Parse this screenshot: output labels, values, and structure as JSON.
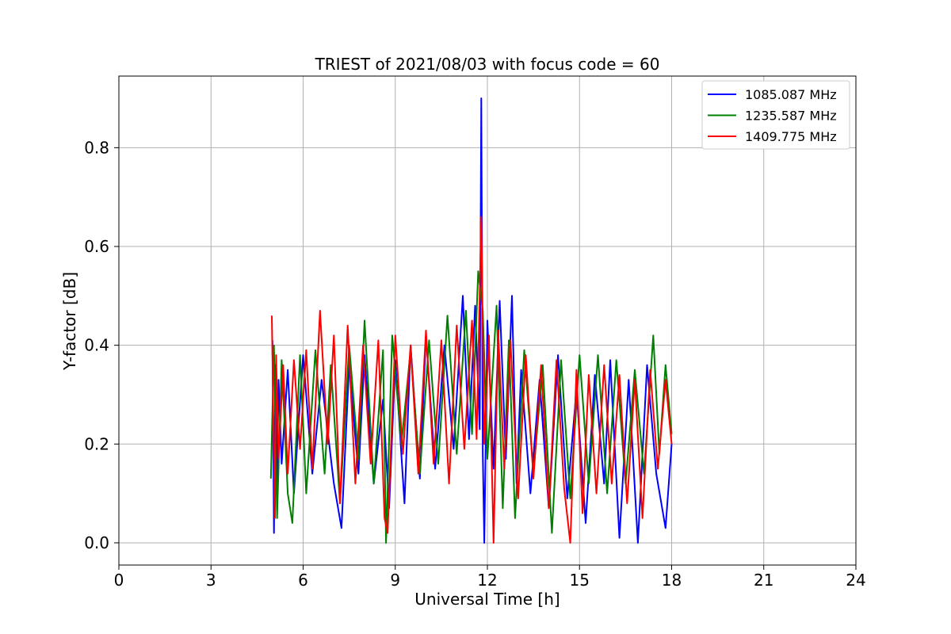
{
  "chart_data": {
    "type": "line",
    "title": "TRIEST of 2021/08/03 with focus code = 60",
    "xlabel": "Universal Time [h]",
    "ylabel": "Y-factor [dB]",
    "xlim": [
      0,
      24
    ],
    "ylim": [
      -0.045,
      0.945
    ],
    "xticks": [
      0,
      3,
      6,
      9,
      12,
      15,
      18,
      21,
      24
    ],
    "xtick_labels": [
      "0",
      "3",
      "6",
      "9",
      "12",
      "15",
      "18",
      "21",
      "24"
    ],
    "yticks": [
      0.0,
      0.2,
      0.4,
      0.6,
      0.8
    ],
    "ytick_labels": [
      "0.0",
      "0.2",
      "0.4",
      "0.6",
      "0.8"
    ],
    "grid": true,
    "legend_position": "top-right",
    "series": [
      {
        "name": "1085.087 MHz",
        "color": "#0000ff",
        "x": [
          5.0,
          5.05,
          5.1,
          5.15,
          5.2,
          5.3,
          5.5,
          5.7,
          6.0,
          6.3,
          6.6,
          7.0,
          7.25,
          7.5,
          7.8,
          8.0,
          8.3,
          8.6,
          8.8,
          9.0,
          9.3,
          9.5,
          9.8,
          10.0,
          10.3,
          10.6,
          10.9,
          11.2,
          11.4,
          11.6,
          11.75,
          11.8,
          11.85,
          11.9,
          12.0,
          12.2,
          12.4,
          12.6,
          12.8,
          12.95,
          13.1,
          13.4,
          13.7,
          14.0,
          14.3,
          14.6,
          14.9,
          15.2,
          15.5,
          15.8,
          16.0,
          16.3,
          16.6,
          16.9,
          17.2,
          17.5,
          17.8,
          18.0
        ],
        "y": [
          0.41,
          0.02,
          0.36,
          0.12,
          0.33,
          0.16,
          0.35,
          0.1,
          0.38,
          0.14,
          0.33,
          0.12,
          0.03,
          0.36,
          0.14,
          0.38,
          0.12,
          0.29,
          0.07,
          0.37,
          0.08,
          0.4,
          0.13,
          0.42,
          0.15,
          0.4,
          0.19,
          0.5,
          0.21,
          0.48,
          0.23,
          0.9,
          0.18,
          0.0,
          0.45,
          0.15,
          0.49,
          0.17,
          0.5,
          0.12,
          0.35,
          0.1,
          0.33,
          0.07,
          0.38,
          0.09,
          0.31,
          0.04,
          0.34,
          0.12,
          0.37,
          0.01,
          0.33,
          0.0,
          0.36,
          0.14,
          0.03,
          0.2
        ]
      },
      {
        "name": "1235.587 MHz",
        "color": "#008000",
        "x": [
          4.95,
          5.05,
          5.15,
          5.3,
          5.5,
          5.65,
          5.9,
          6.1,
          6.4,
          6.7,
          6.9,
          7.2,
          7.5,
          7.8,
          8.0,
          8.3,
          8.6,
          8.7,
          8.9,
          9.2,
          9.5,
          9.8,
          10.1,
          10.4,
          10.7,
          11.0,
          11.3,
          11.5,
          11.7,
          11.85,
          12.0,
          12.3,
          12.5,
          12.7,
          12.9,
          13.2,
          13.5,
          13.8,
          14.1,
          14.4,
          14.7,
          15.0,
          15.3,
          15.6,
          15.9,
          16.2,
          16.5,
          16.8,
          17.1,
          17.4,
          17.6,
          17.8,
          18.0
        ],
        "y": [
          0.13,
          0.4,
          0.05,
          0.37,
          0.1,
          0.04,
          0.38,
          0.1,
          0.39,
          0.14,
          0.36,
          0.08,
          0.4,
          0.17,
          0.45,
          0.12,
          0.39,
          0.0,
          0.42,
          0.2,
          0.39,
          0.14,
          0.41,
          0.16,
          0.46,
          0.18,
          0.47,
          0.22,
          0.55,
          0.47,
          0.17,
          0.48,
          0.07,
          0.41,
          0.05,
          0.39,
          0.14,
          0.36,
          0.02,
          0.37,
          0.09,
          0.38,
          0.12,
          0.38,
          0.1,
          0.37,
          0.12,
          0.35,
          0.14,
          0.42,
          0.18,
          0.36,
          0.22
        ]
      },
      {
        "name": "1409.775 MHz",
        "color": "#ff0000",
        "x": [
          4.98,
          5.02,
          5.08,
          5.12,
          5.2,
          5.35,
          5.5,
          5.7,
          5.9,
          6.1,
          6.3,
          6.55,
          6.8,
          7.0,
          7.2,
          7.45,
          7.7,
          7.95,
          8.2,
          8.45,
          8.65,
          8.75,
          9.0,
          9.25,
          9.5,
          9.75,
          10.0,
          10.25,
          10.5,
          10.75,
          11.0,
          11.25,
          11.5,
          11.65,
          11.8,
          11.9,
          12.05,
          12.2,
          12.35,
          12.55,
          12.75,
          13.0,
          13.25,
          13.5,
          13.75,
          14.0,
          14.25,
          14.5,
          14.7,
          14.9,
          15.1,
          15.3,
          15.55,
          15.8,
          16.05,
          16.3,
          16.55,
          16.8,
          17.05,
          17.3,
          17.55,
          17.8,
          18.0
        ],
        "y": [
          0.46,
          0.3,
          0.05,
          0.38,
          0.17,
          0.36,
          0.14,
          0.37,
          0.19,
          0.39,
          0.15,
          0.47,
          0.2,
          0.42,
          0.08,
          0.44,
          0.12,
          0.4,
          0.16,
          0.41,
          0.05,
          0.02,
          0.42,
          0.18,
          0.4,
          0.14,
          0.43,
          0.16,
          0.41,
          0.12,
          0.44,
          0.19,
          0.45,
          0.21,
          0.66,
          0.2,
          0.42,
          0.0,
          0.43,
          0.15,
          0.41,
          0.09,
          0.38,
          0.13,
          0.36,
          0.07,
          0.37,
          0.11,
          0.0,
          0.35,
          0.06,
          0.34,
          0.1,
          0.36,
          0.12,
          0.34,
          0.08,
          0.33,
          0.05,
          0.35,
          0.15,
          0.33,
          0.2
        ]
      }
    ]
  }
}
